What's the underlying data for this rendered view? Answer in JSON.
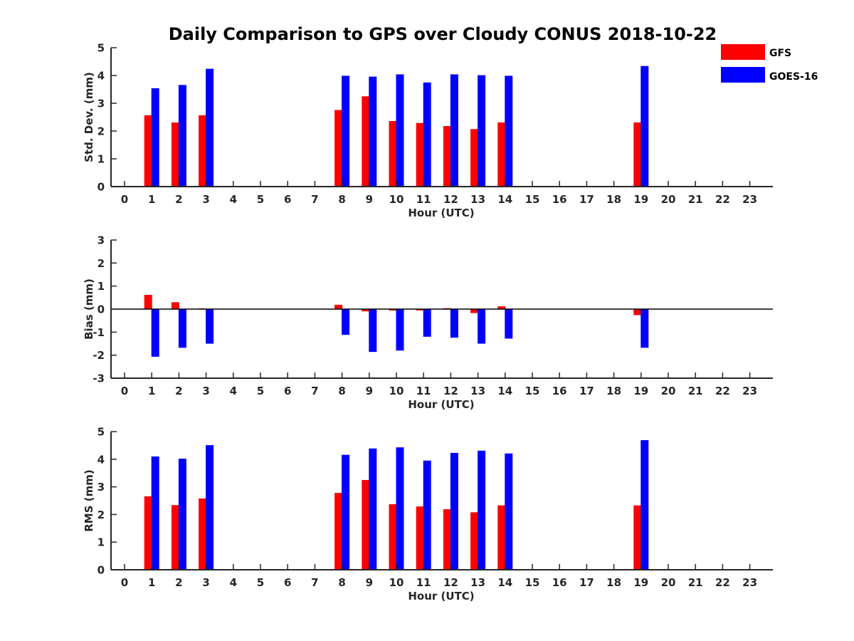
{
  "chart_data": {
    "title": "Daily Comparison to GPS over Cloudy CONUS 2018-10-22",
    "type": "bar",
    "legend": {
      "placement": "top-right",
      "entries": [
        "GFS",
        "GOES-16"
      ]
    },
    "colors": {
      "GFS": "#ff0000",
      "GOES-16": "#0000ff"
    },
    "categories": [
      0,
      1,
      2,
      3,
      4,
      5,
      6,
      7,
      8,
      9,
      10,
      11,
      12,
      13,
      14,
      15,
      16,
      17,
      18,
      19,
      20,
      21,
      22,
      23
    ],
    "panels": [
      {
        "ylabel": "Std. Dev. (mm)",
        "xlabel": "Hour (UTC)",
        "ylim": [
          0,
          5
        ],
        "yticks": [
          0,
          1,
          2,
          3,
          4,
          5
        ],
        "zero_line": false,
        "series": [
          {
            "name": "GFS",
            "values": [
              null,
              2.57,
              2.31,
              2.57,
              null,
              null,
              null,
              null,
              2.76,
              3.25,
              2.36,
              2.29,
              2.18,
              2.07,
              2.31,
              null,
              null,
              null,
              null,
              2.31,
              null,
              null,
              null,
              null
            ]
          },
          {
            "name": "GOES-16",
            "values": [
              null,
              3.54,
              3.66,
              4.24,
              null,
              null,
              null,
              null,
              3.99,
              3.96,
              4.04,
              3.75,
              4.04,
              4.01,
              3.99,
              null,
              null,
              null,
              null,
              4.34,
              null,
              null,
              null,
              null
            ]
          }
        ]
      },
      {
        "ylabel": "Bias (mm)",
        "xlabel": "Hour (UTC)",
        "ylim": [
          -3,
          3
        ],
        "yticks": [
          -3,
          -2,
          -1,
          0,
          1,
          2,
          3
        ],
        "zero_line": true,
        "series": [
          {
            "name": "GFS",
            "values": [
              null,
              0.62,
              0.3,
              0.03,
              null,
              null,
              null,
              null,
              0.19,
              -0.1,
              -0.06,
              -0.06,
              0.04,
              -0.17,
              0.12,
              null,
              null,
              null,
              null,
              -0.26,
              null,
              null,
              null,
              null
            ]
          },
          {
            "name": "GOES-16",
            "values": [
              null,
              -2.07,
              -1.68,
              -1.5,
              null,
              null,
              null,
              null,
              -1.12,
              -1.86,
              -1.8,
              -1.2,
              -1.24,
              -1.5,
              -1.28,
              null,
              null,
              null,
              null,
              -1.68,
              null,
              null,
              null,
              null
            ]
          }
        ]
      },
      {
        "ylabel": "RMS (mm)",
        "xlabel": "Hour (UTC)",
        "ylim": [
          0,
          5
        ],
        "yticks": [
          0,
          1,
          2,
          3,
          4,
          5
        ],
        "zero_line": false,
        "series": [
          {
            "name": "GFS",
            "values": [
              null,
              2.66,
              2.34,
              2.58,
              null,
              null,
              null,
              null,
              2.78,
              3.25,
              2.37,
              2.29,
              2.19,
              2.08,
              2.33,
              null,
              null,
              null,
              null,
              2.33,
              null,
              null,
              null,
              null
            ]
          },
          {
            "name": "GOES-16",
            "values": [
              null,
              4.1,
              4.02,
              4.51,
              null,
              null,
              null,
              null,
              4.16,
              4.39,
              4.43,
              3.95,
              4.23,
              4.31,
              4.21,
              null,
              null,
              null,
              null,
              4.69,
              null,
              null,
              null,
              null
            ]
          }
        ]
      }
    ]
  }
}
